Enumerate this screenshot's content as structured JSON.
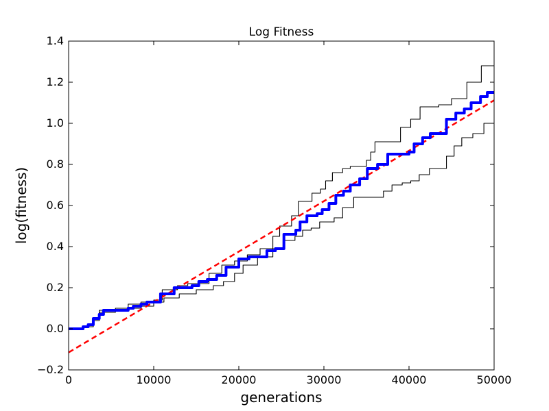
{
  "chart_data": {
    "type": "line",
    "title": "Log Fitness",
    "xlabel": "generations",
    "ylabel": "log(fitness)",
    "xlim": [
      0,
      50000
    ],
    "ylim": [
      -0.2,
      1.4
    ],
    "xticks": [
      0,
      10000,
      20000,
      30000,
      40000,
      50000
    ],
    "xtick_labels": [
      "0",
      "10000",
      "20000",
      "30000",
      "40000",
      "50000"
    ],
    "yticks": [
      -0.2,
      0.0,
      0.2,
      0.4,
      0.6,
      0.8,
      1.0,
      1.2,
      1.4
    ],
    "ytick_labels": [
      "−0.2",
      "0.0",
      "0.2",
      "0.4",
      "0.6",
      "0.8",
      "1.0",
      "1.2",
      "1.4"
    ],
    "grid": false,
    "legend": "none",
    "series": [
      {
        "role": "mean",
        "color": "#0000ff",
        "style": "solid-step",
        "x": [
          0,
          1700,
          2300,
          2900,
          3600,
          4100,
          5500,
          7000,
          7600,
          8500,
          9200,
          10800,
          12400,
          14500,
          15300,
          16300,
          17400,
          18500,
          20000,
          21200,
          23300,
          24300,
          25300,
          26700,
          27200,
          28000,
          29200,
          29800,
          30600,
          31400,
          32300,
          33100,
          34200,
          35100,
          36300,
          37500,
          38800,
          40000,
          40600,
          41600,
          42500,
          44400,
          45500,
          46500,
          47300,
          48400,
          49200,
          50000
        ],
        "y": [
          0.0,
          0.01,
          0.02,
          0.05,
          0.07,
          0.09,
          0.09,
          0.1,
          0.11,
          0.12,
          0.13,
          0.17,
          0.2,
          0.21,
          0.23,
          0.24,
          0.26,
          0.3,
          0.34,
          0.35,
          0.38,
          0.39,
          0.46,
          0.48,
          0.52,
          0.55,
          0.56,
          0.58,
          0.61,
          0.65,
          0.67,
          0.7,
          0.73,
          0.78,
          0.8,
          0.85,
          0.85,
          0.86,
          0.9,
          0.93,
          0.95,
          1.02,
          1.05,
          1.07,
          1.1,
          1.13,
          1.15,
          1.15
        ]
      },
      {
        "role": "upper-bound",
        "color": "#000000",
        "style": "thin-step",
        "x": [
          0,
          1700,
          2900,
          3600,
          5500,
          7000,
          8500,
          10000,
          11000,
          12800,
          14000,
          16500,
          18000,
          19500,
          21000,
          22500,
          24000,
          24800,
          26200,
          27000,
          28600,
          29600,
          30200,
          31000,
          32200,
          33100,
          35000,
          35500,
          36000,
          39000,
          40200,
          41300,
          43500,
          45000,
          46800,
          48500,
          50000
        ],
        "y": [
          0.0,
          0.01,
          0.05,
          0.09,
          0.1,
          0.12,
          0.13,
          0.14,
          0.19,
          0.21,
          0.22,
          0.27,
          0.31,
          0.33,
          0.36,
          0.39,
          0.45,
          0.5,
          0.55,
          0.62,
          0.66,
          0.68,
          0.72,
          0.76,
          0.78,
          0.79,
          0.82,
          0.86,
          0.91,
          0.98,
          1.02,
          1.08,
          1.09,
          1.12,
          1.2,
          1.28,
          1.28
        ]
      },
      {
        "role": "lower-bound",
        "color": "#000000",
        "style": "thin-step",
        "x": [
          0,
          1700,
          2900,
          3600,
          5500,
          7000,
          8500,
          10000,
          11200,
          13000,
          15000,
          17000,
          18200,
          19500,
          20500,
          22200,
          24000,
          25200,
          26600,
          27500,
          28500,
          29500,
          31200,
          32200,
          33500,
          34500,
          36200,
          37000,
          38000,
          39200,
          40200,
          41200,
          42400,
          43000,
          44400,
          45300,
          46200,
          47500,
          48800,
          50000
        ],
        "y": [
          0.0,
          0.01,
          0.04,
          0.08,
          0.09,
          0.1,
          0.11,
          0.13,
          0.15,
          0.17,
          0.19,
          0.21,
          0.23,
          0.27,
          0.31,
          0.35,
          0.39,
          0.43,
          0.45,
          0.48,
          0.49,
          0.52,
          0.54,
          0.59,
          0.64,
          0.64,
          0.64,
          0.67,
          0.7,
          0.71,
          0.72,
          0.75,
          0.78,
          0.78,
          0.84,
          0.89,
          0.93,
          0.95,
          1.0,
          1.0
        ]
      },
      {
        "role": "trend",
        "color": "#ff0000",
        "style": "dashed",
        "x": [
          0,
          50000
        ],
        "y": [
          -0.115,
          1.112
        ]
      }
    ]
  }
}
